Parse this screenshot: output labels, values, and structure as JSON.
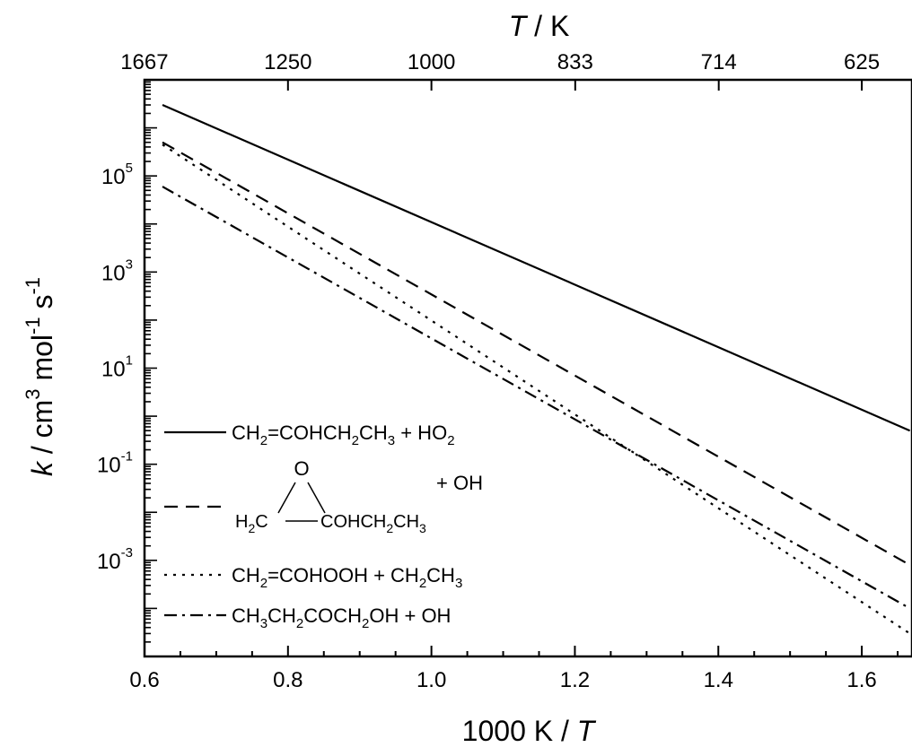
{
  "chart_data": {
    "type": "line",
    "x_axis": {
      "label_number": "1000 K",
      "label_variable": "T",
      "range": [
        0.6,
        1.67
      ],
      "ticks": [
        0.6,
        0.8,
        1.0,
        1.2,
        1.4,
        1.6
      ],
      "tick_labels": [
        "0.6",
        "0.8",
        "1.0",
        "1.2",
        "1.4",
        "1.6"
      ]
    },
    "top_axis": {
      "label_variable": "T",
      "label_unit": "K",
      "tick_labels": [
        "1667",
        "1250",
        "1000",
        "833",
        "714",
        "625"
      ]
    },
    "y_axis": {
      "scale": "log",
      "label_variable": "k",
      "label_unit": "cm3 mol-1 s-1",
      "range": [
        1e-05,
        10000000.0
      ],
      "ticks": [
        100000.0,
        1000.0,
        10.0,
        0.1,
        0.001
      ],
      "tick_labels": [
        {
          "base": "10",
          "exp": "5"
        },
        {
          "base": "10",
          "exp": "3"
        },
        {
          "base": "10",
          "exp": "1"
        },
        {
          "base": "10",
          "exp": "-1"
        },
        {
          "base": "10",
          "exp": "-3"
        }
      ]
    },
    "series": [
      {
        "name": "CH2=COHCH2CH3 + HO2",
        "style": "solid",
        "x": [
          0.625,
          1.667
        ],
        "y": [
          3000000.0,
          0.5
        ]
      },
      {
        "name": "epoxide COHCH2CH3 + OH",
        "style": "dash",
        "x": [
          0.625,
          1.667
        ],
        "y": [
          500000.0,
          0.0008
        ]
      },
      {
        "name": "CH2=COHOOH + CH2CH3",
        "style": "dot",
        "x": [
          0.625,
          1.667
        ],
        "y": [
          450000.0,
          3e-05
        ]
      },
      {
        "name": "CH3CH2COCH2OH + OH",
        "style": "dashdot",
        "x": [
          0.625,
          1.667
        ],
        "y": [
          60000.0,
          0.0001
        ]
      }
    ],
    "legend_placement": "lower-left",
    "grid": false
  },
  "legend": {
    "items": [
      {
        "style": "solid",
        "parts": [
          {
            "t": "CH"
          },
          {
            "t": "2",
            "s": "sub"
          },
          {
            "t": "=COHCH"
          },
          {
            "t": "2",
            "s": "sub"
          },
          {
            "t": "CH"
          },
          {
            "t": "3",
            "s": "sub"
          },
          {
            "t": " + HO"
          },
          {
            "t": "2",
            "s": "sub"
          }
        ]
      },
      {
        "style": "dash",
        "structure": {
          "O": "O",
          "left_parts": [
            {
              "t": "H"
            },
            {
              "t": "2",
              "s": "sub"
            },
            {
              "t": "C"
            }
          ],
          "right_parts": [
            {
              "t": "COHCH"
            },
            {
              "t": "2",
              "s": "sub"
            },
            {
              "t": "CH"
            },
            {
              "t": "3",
              "s": "sub"
            }
          ],
          "suffix": "+ OH"
        }
      },
      {
        "style": "dot",
        "parts": [
          {
            "t": "CH"
          },
          {
            "t": "2",
            "s": "sub"
          },
          {
            "t": "=COHOOH + CH"
          },
          {
            "t": "2",
            "s": "sub"
          },
          {
            "t": "CH"
          },
          {
            "t": "3",
            "s": "sub"
          }
        ]
      },
      {
        "style": "dashdot",
        "parts": [
          {
            "t": "CH"
          },
          {
            "t": "3",
            "s": "sub"
          },
          {
            "t": "CH"
          },
          {
            "t": "2",
            "s": "sub"
          },
          {
            "t": "COCH"
          },
          {
            "t": "2",
            "s": "sub"
          },
          {
            "t": "OH + OH"
          }
        ]
      }
    ]
  }
}
